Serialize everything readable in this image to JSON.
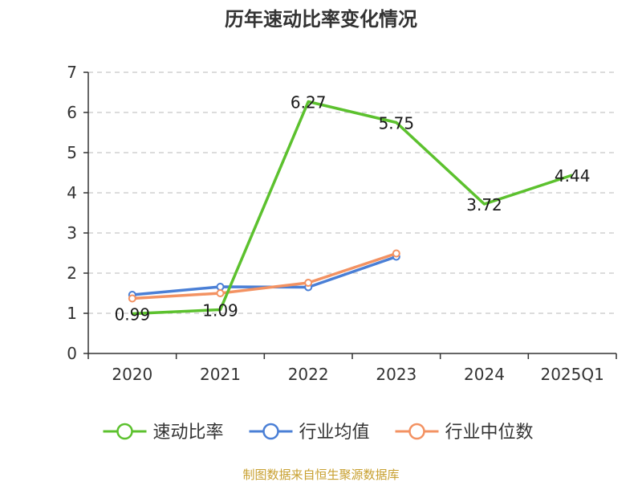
{
  "chart_data": {
    "type": "line",
    "title": "历年速动比率变化情况",
    "categories": [
      "2020",
      "2021",
      "2022",
      "2023",
      "2024",
      "2025Q1"
    ],
    "ylim": [
      0,
      7
    ],
    "yticks": [
      0,
      1,
      2,
      3,
      4,
      5,
      6,
      7
    ],
    "grid": true,
    "legend_position": "bottom",
    "series": [
      {
        "name": "速动比率",
        "color": "#5cc12e",
        "values": [
          0.99,
          1.09,
          6.27,
          5.75,
          3.72,
          4.44
        ],
        "labels": [
          "0.99",
          "1.09",
          "6.27",
          "5.75",
          "3.72",
          "4.44"
        ]
      },
      {
        "name": "行业均值",
        "color": "#4a7fd6",
        "values": [
          1.46,
          1.66,
          1.65,
          2.41,
          null,
          null
        ]
      },
      {
        "name": "行业中位数",
        "color": "#f39262",
        "values": [
          1.37,
          1.5,
          1.76,
          2.49,
          null,
          null
        ]
      }
    ]
  },
  "footer": {
    "source": "制图数据来自恒生聚源数据库"
  }
}
